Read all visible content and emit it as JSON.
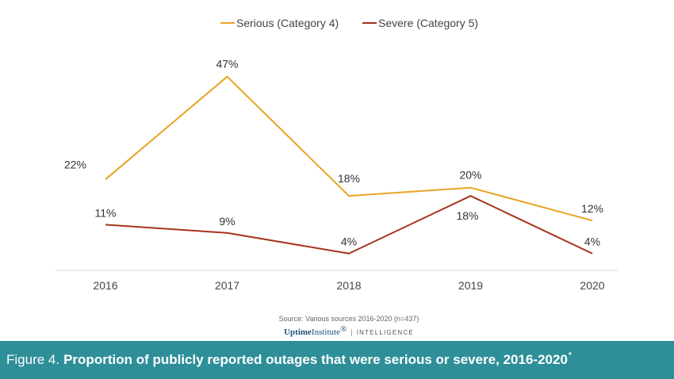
{
  "chart_data": {
    "type": "line",
    "categories": [
      "2016",
      "2017",
      "2018",
      "2019",
      "2020"
    ],
    "series": [
      {
        "name": "Serious (Category 4)",
        "color": "#e8a323",
        "values": [
          22,
          47,
          18,
          20,
          12
        ],
        "labels": [
          "22%",
          "47%",
          "18%",
          "20%",
          "12%"
        ]
      },
      {
        "name": "Severe (Category 5)",
        "color": "#a8321c",
        "values": [
          11,
          9,
          4,
          18,
          4
        ],
        "labels": [
          "11%",
          "9%",
          "4%",
          "18%",
          "4%"
        ]
      }
    ],
    "ylim": [
      0,
      50
    ],
    "grid": false,
    "legend_position": "top-center"
  },
  "source": "Source: Various sources 2016-2020 (n=437)",
  "brand": {
    "name_bold": "Uptime",
    "name_regular": "Institute",
    "mark": "®",
    "separator": "|",
    "division": "INTELLIGENCE"
  },
  "figure": {
    "number": "Figure 4.",
    "title": "Proportion of publicly reported outages that were serious or severe, 2016-2020",
    "footnote_mark": "*"
  },
  "colors": {
    "footer_bg": "#2e8f99",
    "axis_line": "#d9d9d9"
  }
}
